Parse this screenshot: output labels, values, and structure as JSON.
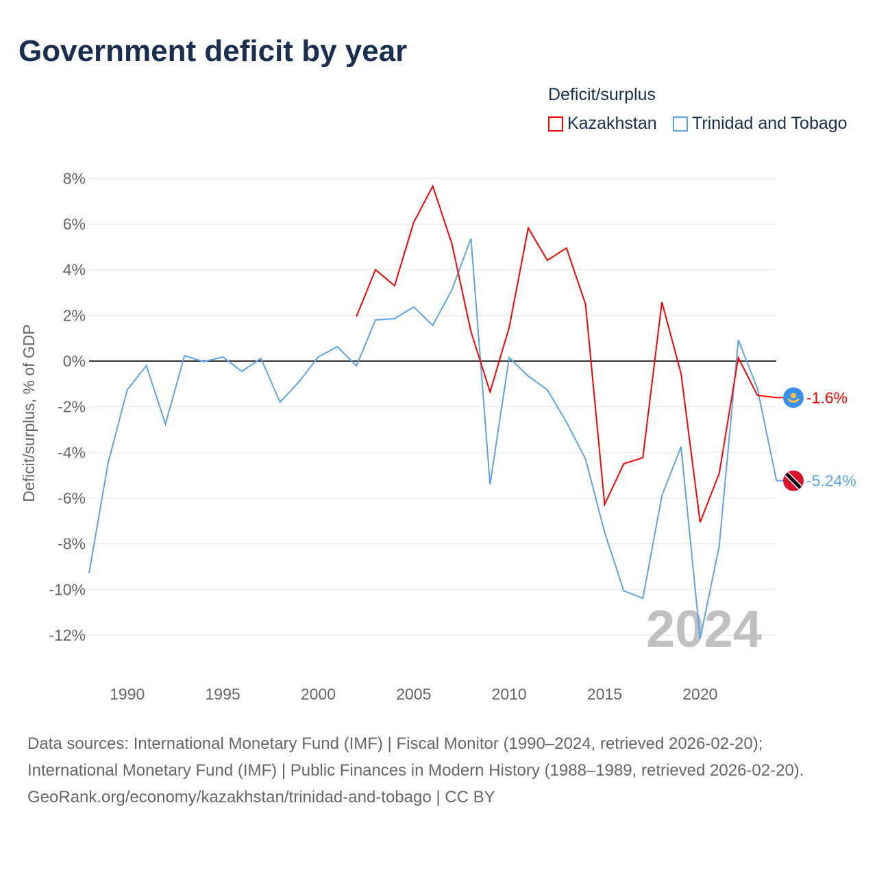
{
  "chart_data": {
    "type": "line",
    "title": "Government deficit by year",
    "ylabel": "Deficit/surplus, % of GDP",
    "xlabel": "",
    "ylim": [
      -12,
      8
    ],
    "xlim": [
      1988,
      2024
    ],
    "yticks": [
      8,
      6,
      4,
      2,
      0,
      -2,
      -4,
      -6,
      -8,
      -10,
      -12
    ],
    "ytick_labels": [
      "8%",
      "6%",
      "4%",
      "2%",
      "0%",
      "-2%",
      "-4%",
      "-6%",
      "-8%",
      "-10%",
      "-12%"
    ],
    "xticks": [
      1990,
      1995,
      2000,
      2005,
      2010,
      2015,
      2020
    ],
    "xtick_labels": [
      "1990",
      "1995",
      "2000",
      "2005",
      "2010",
      "2015",
      "2020"
    ],
    "legend_title": "Deficit/surplus",
    "legend_placement": "top-right",
    "year_watermark": "2024",
    "series": [
      {
        "name": "Kazakhstan",
        "color": "#ff0000",
        "end_label": "-1.6%",
        "flag": "kazakhstan-flag",
        "x": [
          2002,
          2003,
          2004,
          2005,
          2006,
          2007,
          2008,
          2009,
          2010,
          2011,
          2012,
          2013,
          2014,
          2015,
          2016,
          2017,
          2018,
          2019,
          2020,
          2021,
          2022,
          2023,
          2024
        ],
        "values": [
          1.95,
          4.0,
          3.3,
          6.07,
          7.66,
          5.14,
          1.29,
          -1.35,
          1.47,
          5.83,
          4.41,
          4.95,
          2.49,
          -6.28,
          -4.5,
          -4.23,
          2.58,
          -0.54,
          -7.06,
          -4.92,
          0.15,
          -1.5,
          -1.6
        ]
      },
      {
        "name": "Trinidad and Tobago",
        "color": "#5ba4ea",
        "end_label": "-5.24%",
        "flag": "trinidad-flag",
        "x": [
          1988,
          1989,
          1990,
          1991,
          1992,
          1993,
          1994,
          1995,
          1996,
          1997,
          1998,
          1999,
          2000,
          2001,
          2002,
          2003,
          2004,
          2005,
          2006,
          2007,
          2008,
          2009,
          2010,
          2011,
          2012,
          2013,
          2014,
          2015,
          2016,
          2017,
          2018,
          2019,
          2020,
          2021,
          2022,
          2023,
          2024
        ],
        "values": [
          -9.28,
          -4.45,
          -1.26,
          -0.2,
          -2.76,
          0.24,
          -0.03,
          0.18,
          -0.45,
          0.12,
          -1.8,
          -0.9,
          0.18,
          0.63,
          -0.21,
          1.8,
          1.86,
          2.37,
          1.56,
          3.12,
          5.37,
          -5.4,
          0.15,
          -0.66,
          -1.26,
          -2.67,
          -4.29,
          -7.5,
          -10.06,
          -10.39,
          -5.89,
          -3.75,
          -12.16,
          -8.1,
          0.93,
          -1.2,
          -5.24
        ]
      }
    ]
  },
  "footer": {
    "sources": "Data sources: International Monetary Fund (IMF) | Fiscal Monitor (1990–2024, retrieved 2026-02-20); International Monetary Fund (IMF) | Public Finances in Modern History (1988–1989, retrieved 2026-02-20).",
    "credit": "GeoRank.org/economy/kazakhstan/trinidad-and-tobago | CC BY"
  }
}
